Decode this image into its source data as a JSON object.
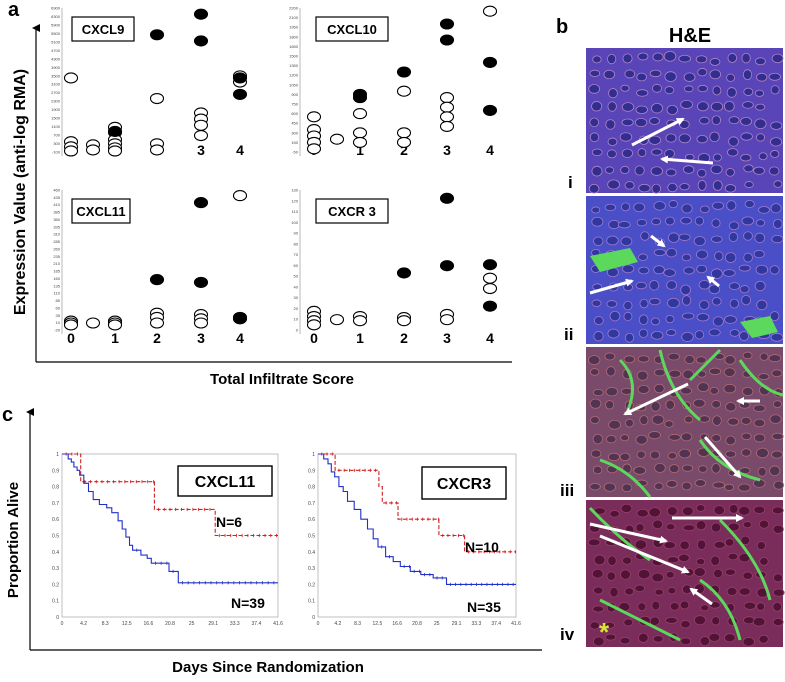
{
  "panels": {
    "a": "a",
    "b": "b",
    "c": "c"
  },
  "panel_a": {
    "ylabel": "Expression Value (anti-log RMA)",
    "xlabel": "Total Infiltrate Score",
    "x_ticks": [
      "0",
      "1",
      "2",
      "3",
      "4"
    ]
  },
  "panel_b": {
    "title": "H&E",
    "rows": [
      "i",
      "ii",
      "iii",
      "iv"
    ],
    "asterisk": "*",
    "colors": {
      "bg_i": "#5a45b8",
      "bg_ii": "#4a4fc8",
      "bg_iii": "#7a4a6a",
      "bg_iv": "#7a2d5a",
      "stroma": "#5cd85c"
    }
  },
  "panel_c": {
    "ylabel": "Proportion Alive",
    "xlabel": "Days Since Randomization"
  },
  "chart_data": [
    {
      "type": "scatter",
      "title": "CXCL9",
      "xlabel": "Total Infiltrate Score",
      "ylabel": "Expression Value (anti-log RMA)",
      "ylim": [
        -100,
        6900
      ],
      "y_ticks": [
        "-100",
        "300",
        "700",
        "1100",
        "1500",
        "1900",
        "2300",
        "2700",
        "3100",
        "3500",
        "3900",
        "4300",
        "4700",
        "5100",
        "5500",
        "5900",
        "6300",
        "6900"
      ],
      "series": [
        {
          "name": "open",
          "points": [
            [
              0,
              3500
            ],
            [
              0,
              400
            ],
            [
              0,
              150
            ],
            [
              0,
              -50
            ],
            [
              0.5,
              250
            ],
            [
              0.5,
              0
            ],
            [
              1,
              1100
            ],
            [
              1,
              850
            ],
            [
              1,
              500
            ],
            [
              1,
              300
            ],
            [
              1,
              100
            ],
            [
              1,
              -50
            ],
            [
              2,
              2500
            ],
            [
              2,
              300
            ],
            [
              2,
              0
            ],
            [
              3,
              1800
            ],
            [
              3,
              1500
            ],
            [
              3,
              1200
            ],
            [
              3,
              700
            ],
            [
              4,
              3600
            ],
            [
              4,
              3300
            ]
          ]
        },
        {
          "name": "filled",
          "points": [
            [
              1,
              900
            ],
            [
              2,
              5600
            ],
            [
              3,
              6600
            ],
            [
              3,
              5300
            ],
            [
              4,
              3500
            ],
            [
              4,
              2700
            ]
          ]
        }
      ]
    },
    {
      "type": "scatter",
      "title": "CXCL10",
      "xlabel": "Total Infiltrate Score",
      "ylabel": "Expression Value (anti-log RMA)",
      "ylim": [
        -50,
        2200
      ],
      "y_ticks": [
        "-50",
        "150",
        "300",
        "450",
        "600",
        "750",
        "900",
        "1050",
        "1200",
        "1350",
        "1500",
        "1650",
        "1800",
        "1950",
        "2100",
        "2200"
      ],
      "series": [
        {
          "name": "open",
          "points": [
            [
              0,
              500
            ],
            [
              0,
              300
            ],
            [
              0,
              200
            ],
            [
              0,
              100
            ],
            [
              0,
              0
            ],
            [
              0.5,
              150
            ],
            [
              1,
              550
            ],
            [
              1,
              250
            ],
            [
              1,
              100
            ],
            [
              2,
              900
            ],
            [
              2,
              250
            ],
            [
              2,
              100
            ],
            [
              3,
              800
            ],
            [
              3,
              650
            ],
            [
              3,
              500
            ],
            [
              3,
              350
            ],
            [
              4,
              2150
            ]
          ]
        },
        {
          "name": "filled",
          "points": [
            [
              1,
              850
            ],
            [
              1,
              800
            ],
            [
              2,
              1200
            ],
            [
              3,
              1950
            ],
            [
              3,
              1700
            ],
            [
              4,
              1350
            ],
            [
              4,
              600
            ]
          ]
        }
      ]
    },
    {
      "type": "scatter",
      "title": "CXCL11",
      "xlabel": "Total Infiltrate Score",
      "ylabel": "Expression Value (anti-log RMA)",
      "ylim": [
        -20,
        480
      ],
      "y_ticks": [
        "-20",
        "10",
        "35",
        "60",
        "85",
        "110",
        "135",
        "160",
        "185",
        "210",
        "235",
        "260",
        "285",
        "310",
        "335",
        "360",
        "385",
        "410",
        "435",
        "460"
      ],
      "x_ticks": [
        "0",
        "1",
        "2",
        "3",
        "4"
      ],
      "series": [
        {
          "name": "open",
          "points": [
            [
              0,
              12
            ],
            [
              0,
              5
            ],
            [
              0,
              -2
            ],
            [
              0.5,
              5
            ],
            [
              1,
              12
            ],
            [
              1,
              5
            ],
            [
              1,
              -2
            ],
            [
              2,
              40
            ],
            [
              2,
              25
            ],
            [
              2,
              5
            ],
            [
              3,
              35
            ],
            [
              3,
              20
            ],
            [
              3,
              5
            ],
            [
              4,
              460
            ]
          ]
        },
        {
          "name": "filled",
          "points": [
            [
              2,
              160
            ],
            [
              3,
              150
            ],
            [
              3,
              435
            ],
            [
              4,
              25
            ],
            [
              4,
              20
            ]
          ]
        }
      ]
    },
    {
      "type": "scatter",
      "title": "CXCR 3",
      "xlabel": "Total Infiltrate Score",
      "ylabel": "Expression Value (anti-log RMA)",
      "ylim": [
        0,
        135
      ],
      "y_ticks": [
        "0",
        "10",
        "20",
        "30",
        "40",
        "50",
        "60",
        "70",
        "80",
        "90",
        "100",
        "110",
        "120",
        "130"
      ],
      "x_ticks": [
        "0",
        "1",
        "2",
        "3",
        "4"
      ],
      "series": [
        {
          "name": "open",
          "points": [
            [
              0,
              18
            ],
            [
              0,
              13
            ],
            [
              0,
              9
            ],
            [
              0,
              5
            ],
            [
              0.5,
              10
            ],
            [
              1,
              13
            ],
            [
              1,
              9
            ],
            [
              2,
              12
            ],
            [
              2,
              9
            ],
            [
              3,
              15
            ],
            [
              3,
              10
            ],
            [
              4,
              50
            ],
            [
              4,
              40
            ]
          ]
        },
        {
          "name": "filled",
          "points": [
            [
              2,
              55
            ],
            [
              3,
              62
            ],
            [
              3,
              127
            ],
            [
              4,
              63
            ],
            [
              4,
              23
            ]
          ]
        }
      ]
    },
    {
      "type": "line",
      "title": "CXCL11",
      "xlabel": "Days Since Randomization",
      "ylabel": "Proportion Alive",
      "ylim": [
        0,
        1
      ],
      "xlim": [
        0,
        41.6
      ],
      "x_ticks": [
        "0",
        "4.2",
        "8.3",
        "12.5",
        "16.6",
        "20.8",
        "25",
        "29.1",
        "33.3",
        "37.4",
        "41.6"
      ],
      "y_ticks": [
        "0",
        "0.1",
        "0.2",
        "0.3",
        "0.4",
        "0.5",
        "0.6",
        "0.7",
        "0.8",
        "0.9",
        "1"
      ],
      "series": [
        {
          "name": "high",
          "color": "#d02020",
          "label": "N=6",
          "steps": [
            [
              0,
              1
            ],
            [
              3.6,
              1
            ],
            [
              3.6,
              0.83
            ],
            [
              17.8,
              0.83
            ],
            [
              17.8,
              0.66
            ],
            [
              29.5,
              0.66
            ],
            [
              29.5,
              0.5
            ],
            [
              41.6,
              0.5
            ]
          ]
        },
        {
          "name": "low",
          "color": "#2030c8",
          "label": "N=39",
          "steps": [
            [
              0,
              1
            ],
            [
              1.2,
              1
            ],
            [
              1.2,
              0.97
            ],
            [
              1.8,
              0.97
            ],
            [
              1.8,
              0.95
            ],
            [
              2.3,
              0.95
            ],
            [
              2.3,
              0.92
            ],
            [
              2.9,
              0.92
            ],
            [
              2.9,
              0.9
            ],
            [
              3.4,
              0.9
            ],
            [
              3.4,
              0.87
            ],
            [
              4.2,
              0.87
            ],
            [
              4.2,
              0.82
            ],
            [
              5.1,
              0.82
            ],
            [
              5.1,
              0.77
            ],
            [
              6.0,
              0.77
            ],
            [
              6.0,
              0.72
            ],
            [
              7.2,
              0.72
            ],
            [
              7.2,
              0.69
            ],
            [
              8.6,
              0.69
            ],
            [
              8.6,
              0.67
            ],
            [
              9.6,
              0.67
            ],
            [
              9.6,
              0.64
            ],
            [
              10.8,
              0.64
            ],
            [
              10.8,
              0.59
            ],
            [
              11.6,
              0.59
            ],
            [
              11.6,
              0.54
            ],
            [
              12.3,
              0.54
            ],
            [
              12.3,
              0.49
            ],
            [
              13.0,
              0.49
            ],
            [
              13.0,
              0.44
            ],
            [
              13.6,
              0.44
            ],
            [
              13.6,
              0.41
            ],
            [
              15.2,
              0.41
            ],
            [
              15.2,
              0.38
            ],
            [
              16.4,
              0.38
            ],
            [
              16.4,
              0.36
            ],
            [
              17.2,
              0.36
            ],
            [
              17.2,
              0.33
            ],
            [
              20.6,
              0.33
            ],
            [
              20.6,
              0.28
            ],
            [
              22.4,
              0.28
            ],
            [
              22.4,
              0.21
            ],
            [
              41.6,
              0.21
            ]
          ]
        }
      ]
    },
    {
      "type": "line",
      "title": "CXCR3",
      "xlabel": "Days Since Randomization",
      "ylabel": "Proportion Alive",
      "ylim": [
        0,
        1
      ],
      "xlim": [
        0,
        41.6
      ],
      "x_ticks": [
        "0",
        "4.2",
        "8.3",
        "12.5",
        "16.6",
        "20.8",
        "25",
        "29.1",
        "33.3",
        "37.4",
        "41.6"
      ],
      "y_ticks": [
        "0",
        "0.1",
        "0.2",
        "0.3",
        "0.4",
        "0.5",
        "0.6",
        "0.7",
        "0.8",
        "0.9",
        "1"
      ],
      "series": [
        {
          "name": "high",
          "color": "#d02020",
          "label": "N=10",
          "steps": [
            [
              0,
              1
            ],
            [
              3.6,
              1
            ],
            [
              3.6,
              0.9
            ],
            [
              12.8,
              0.9
            ],
            [
              12.8,
              0.8
            ],
            [
              13.5,
              0.8
            ],
            [
              13.5,
              0.7
            ],
            [
              16.8,
              0.7
            ],
            [
              16.8,
              0.6
            ],
            [
              25.4,
              0.6
            ],
            [
              25.4,
              0.5
            ],
            [
              30.8,
              0.5
            ],
            [
              30.8,
              0.4
            ],
            [
              41.6,
              0.4
            ]
          ]
        },
        {
          "name": "low",
          "color": "#2030c8",
          "label": "N=35",
          "steps": [
            [
              0,
              1
            ],
            [
              1.2,
              1
            ],
            [
              1.2,
              0.97
            ],
            [
              2.1,
              0.97
            ],
            [
              2.1,
              0.94
            ],
            [
              2.8,
              0.94
            ],
            [
              2.8,
              0.89
            ],
            [
              3.5,
              0.89
            ],
            [
              3.5,
              0.86
            ],
            [
              4.4,
              0.86
            ],
            [
              4.4,
              0.8
            ],
            [
              5.3,
              0.8
            ],
            [
              5.3,
              0.77
            ],
            [
              6.2,
              0.77
            ],
            [
              6.2,
              0.71
            ],
            [
              7.6,
              0.71
            ],
            [
              7.6,
              0.66
            ],
            [
              9.0,
              0.66
            ],
            [
              9.0,
              0.6
            ],
            [
              10.4,
              0.6
            ],
            [
              10.4,
              0.54
            ],
            [
              11.6,
              0.54
            ],
            [
              11.6,
              0.48
            ],
            [
              12.6,
              0.48
            ],
            [
              12.6,
              0.43
            ],
            [
              14.2,
              0.43
            ],
            [
              14.2,
              0.37
            ],
            [
              15.8,
              0.37
            ],
            [
              15.8,
              0.34
            ],
            [
              17.3,
              0.34
            ],
            [
              17.3,
              0.31
            ],
            [
              19.4,
              0.31
            ],
            [
              19.4,
              0.28
            ],
            [
              21.6,
              0.28
            ],
            [
              21.6,
              0.26
            ],
            [
              24.2,
              0.26
            ],
            [
              24.2,
              0.24
            ],
            [
              27.0,
              0.24
            ],
            [
              27.0,
              0.2
            ],
            [
              41.6,
              0.2
            ]
          ]
        }
      ]
    }
  ]
}
